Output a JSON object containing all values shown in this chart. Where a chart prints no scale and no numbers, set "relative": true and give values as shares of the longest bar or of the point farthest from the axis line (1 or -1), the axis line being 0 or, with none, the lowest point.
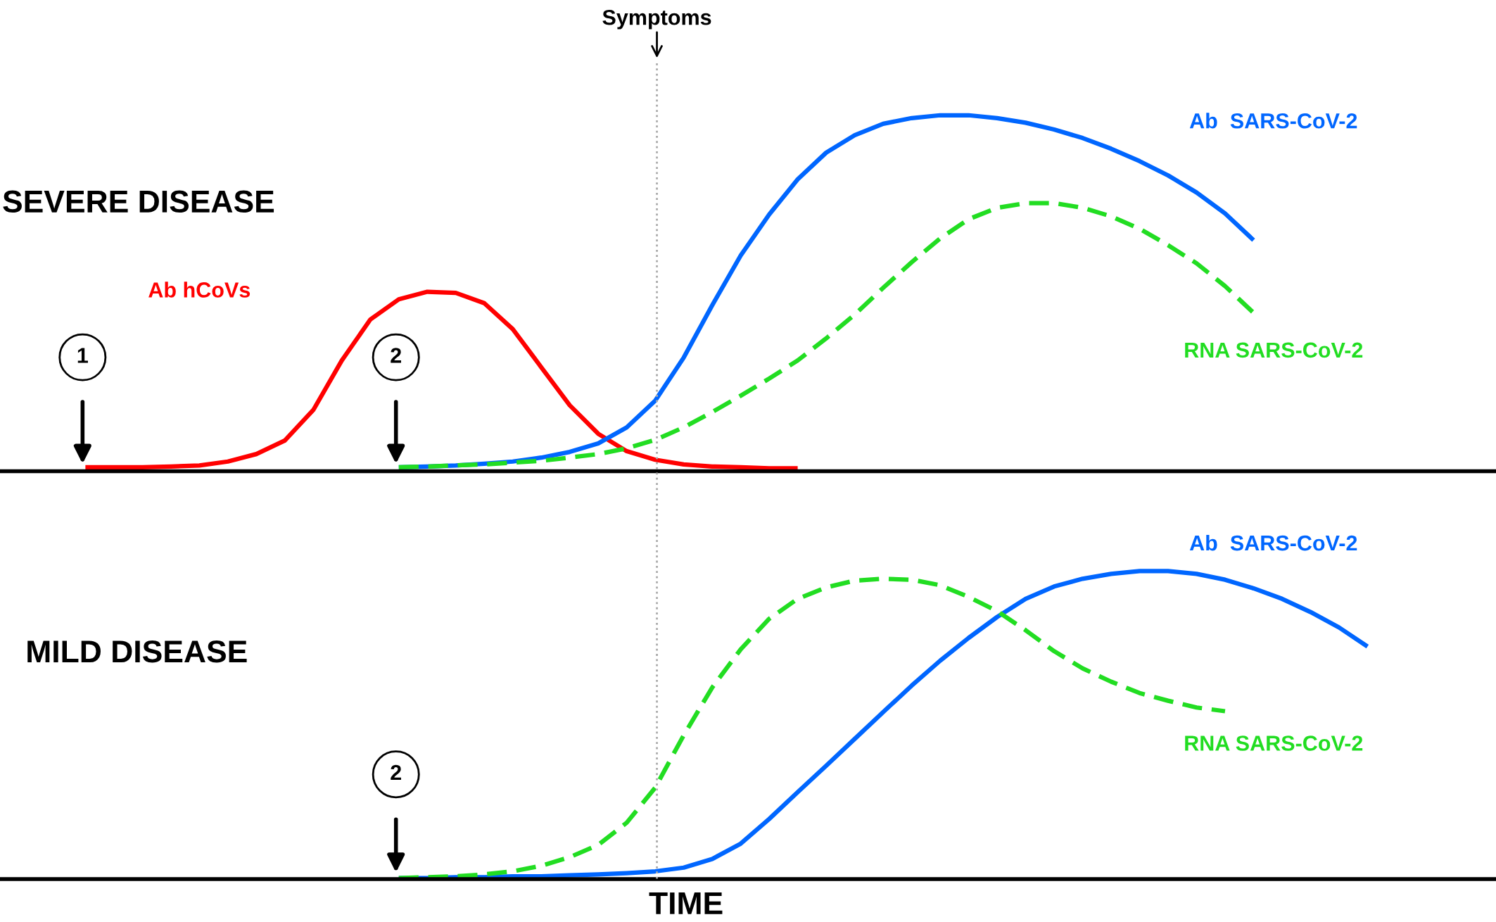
{
  "chart_data": [
    {
      "type": "line",
      "title": "SEVERE DISEASE",
      "relative": true,
      "legend": false,
      "grid": false,
      "categories": [
        null,
        null,
        null,
        null,
        null,
        null,
        null,
        null,
        null,
        null,
        null,
        null,
        null,
        null,
        null,
        null,
        null,
        null,
        null,
        null,
        null,
        null,
        null,
        null,
        null,
        null,
        null,
        null,
        null,
        null,
        null,
        null,
        null,
        null,
        null,
        null,
        null,
        null,
        null,
        null,
        null,
        null,
        null,
        null,
        null,
        null,
        null,
        null,
        null,
        null,
        null,
        null
      ],
      "series": [
        {
          "name": "Ab hCoVs",
          "color": "#ff0000",
          "line_style": "solid",
          "values": [
            null,
            null,
            0.011,
            0.011,
            0.011,
            0.013,
            0.016,
            0.027,
            0.048,
            0.086,
            0.172,
            0.311,
            0.426,
            0.483,
            0.504,
            0.501,
            0.472,
            0.399,
            0.292,
            0.185,
            0.105,
            0.056,
            0.032,
            0.019,
            0.013,
            0.011,
            0.008,
            0.008,
            null,
            null,
            null,
            null,
            null,
            null,
            null,
            null,
            null,
            null,
            null,
            null,
            null,
            null,
            null,
            null,
            null,
            null,
            null,
            null,
            null,
            null,
            null,
            null
          ]
        },
        {
          "name": "Ab  SARS-CoV-2",
          "color": "#0066ff",
          "line_style": "solid",
          "values": [
            null,
            null,
            null,
            null,
            null,
            null,
            null,
            null,
            null,
            null,
            null,
            null,
            null,
            0.011,
            0.013,
            0.016,
            0.021,
            0.027,
            0.038,
            0.054,
            0.078,
            0.123,
            0.198,
            0.319,
            0.466,
            0.606,
            0.721,
            0.82,
            0.895,
            0.944,
            0.976,
            0.992,
            1.0,
            1.0,
            0.992,
            0.979,
            0.96,
            0.936,
            0.906,
            0.871,
            0.831,
            0.783,
            0.724,
            0.649,
            null,
            null,
            null,
            null,
            null,
            null,
            null,
            null
          ]
        },
        {
          "name": "RNA SARS-CoV-2",
          "color": "#22dd22",
          "line_style": "dashed",
          "values": [
            null,
            null,
            null,
            null,
            null,
            null,
            null,
            null,
            null,
            null,
            null,
            null,
            null,
            0.011,
            0.013,
            0.016,
            0.019,
            0.024,
            0.029,
            0.038,
            0.048,
            0.064,
            0.088,
            0.123,
            0.166,
            0.212,
            0.26,
            0.311,
            0.373,
            0.44,
            0.515,
            0.587,
            0.654,
            0.708,
            0.74,
            0.753,
            0.753,
            0.74,
            0.716,
            0.681,
            0.635,
            0.584,
            0.52,
            0.445,
            null,
            null,
            null,
            null,
            null,
            null,
            null,
            null
          ]
        }
      ],
      "annotations": [
        "1",
        "2",
        "Symptoms"
      ]
    },
    {
      "type": "line",
      "title": "MILD DISEASE",
      "xlabel": "TIME",
      "relative": true,
      "legend": false,
      "grid": false,
      "categories": [
        null,
        null,
        null,
        null,
        null,
        null,
        null,
        null,
        null,
        null,
        null,
        null,
        null,
        null,
        null,
        null,
        null,
        null,
        null,
        null,
        null,
        null,
        null,
        null,
        null,
        null,
        null,
        null,
        null,
        null,
        null,
        null,
        null,
        null,
        null,
        null,
        null,
        null,
        null,
        null,
        null,
        null,
        null,
        null,
        null,
        null,
        null,
        null,
        null,
        null,
        null,
        null
      ],
      "series": [
        {
          "name": "Ab  SARS-CoV-2",
          "color": "#0066ff",
          "line_style": "solid",
          "values": [
            null,
            null,
            null,
            null,
            null,
            null,
            null,
            null,
            null,
            null,
            null,
            null,
            null,
            0.003,
            0.003,
            0.006,
            0.006,
            0.009,
            0.009,
            0.012,
            0.015,
            0.019,
            0.025,
            0.037,
            0.065,
            0.115,
            0.195,
            0.282,
            0.368,
            0.455,
            0.542,
            0.628,
            0.709,
            0.783,
            0.851,
            0.91,
            0.95,
            0.975,
            0.991,
            1.0,
            1.0,
            0.991,
            0.972,
            0.944,
            0.91,
            0.867,
            0.817,
            0.755,
            null,
            null,
            null,
            null
          ]
        },
        {
          "name": "RNA SARS-CoV-2",
          "color": "#22dd22",
          "line_style": "dashed",
          "values": [
            null,
            null,
            null,
            null,
            null,
            null,
            null,
            null,
            null,
            null,
            null,
            null,
            null,
            0.003,
            0.006,
            0.009,
            0.015,
            0.025,
            0.043,
            0.071,
            0.111,
            0.183,
            0.297,
            0.467,
            0.622,
            0.746,
            0.845,
            0.91,
            0.947,
            0.969,
            0.975,
            0.972,
            0.954,
            0.916,
            0.87,
            0.808,
            0.74,
            0.684,
            0.641,
            0.604,
            0.579,
            0.557,
            0.545,
            null,
            null,
            null,
            null,
            null,
            null,
            null,
            null,
            null
          ]
        }
      ],
      "annotations": [
        "2"
      ]
    }
  ]
}
